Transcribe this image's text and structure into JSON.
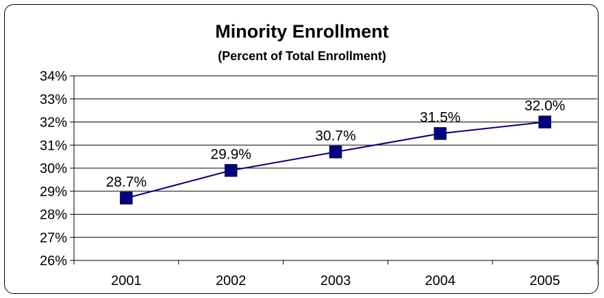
{
  "chart_data": {
    "type": "line",
    "title": "Minority Enrollment",
    "subtitle": "(Percent of Total Enrollment)",
    "xlabel": "",
    "ylabel": "",
    "categories": [
      "2001",
      "2002",
      "2003",
      "2004",
      "2005"
    ],
    "series": [
      {
        "values": [
          28.7,
          29.9,
          30.7,
          31.5,
          32.0
        ],
        "data_labels": [
          "28.7%",
          "29.9%",
          "30.7%",
          "31.5%",
          "32.0%"
        ],
        "color": "#000080"
      }
    ],
    "ylim": [
      26,
      34
    ],
    "yticks": [
      "26%",
      "27%",
      "28%",
      "29%",
      "30%",
      "31%",
      "32%",
      "33%",
      "34%"
    ],
    "grid": true,
    "legend": "none"
  }
}
